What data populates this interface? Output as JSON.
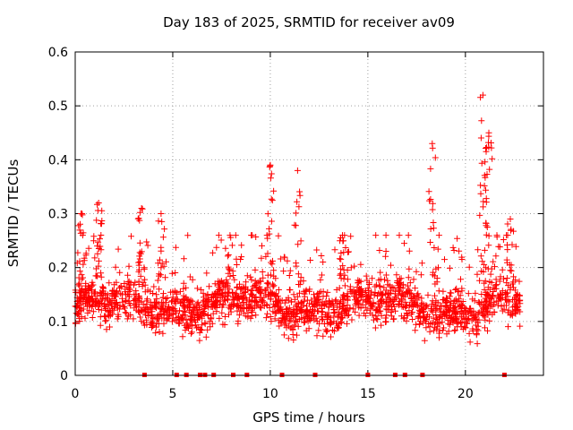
{
  "chart_data": {
    "type": "scatter",
    "title": "Day 183 of 2025, SRMTID for receiver av09",
    "xlabel": "GPS time / hours",
    "ylabel": "SRMTID / TECUs",
    "xlim": [
      0,
      24
    ],
    "ylim": [
      0,
      0.6
    ],
    "xticks": [
      0,
      5,
      10,
      15,
      20
    ],
    "xtick_labels": [
      "0",
      "5",
      "10",
      "15",
      "20"
    ],
    "yticks": [
      0,
      0.1,
      0.2,
      0.3,
      0.4,
      0.5,
      0.6
    ],
    "ytick_labels": [
      "0",
      "0.1",
      "0.2",
      "0.3",
      "0.4",
      "0.5",
      "0.6"
    ],
    "grid": true,
    "marker": "+",
    "color": "#ff0000",
    "x_range": [
      0,
      22.8
    ],
    "typical_y_range": [
      0.05,
      0.22
    ],
    "main_cluster": {
      "y_center": 0.13,
      "y_spread": 0.05
    },
    "spikes": [
      {
        "x": 0.3,
        "y": 0.3
      },
      {
        "x": 1.2,
        "y": 0.32
      },
      {
        "x": 3.4,
        "y": 0.31
      },
      {
        "x": 4.4,
        "y": 0.3
      },
      {
        "x": 10.0,
        "y": 0.39
      },
      {
        "x": 11.4,
        "y": 0.38
      },
      {
        "x": 13.7,
        "y": 0.26
      },
      {
        "x": 18.3,
        "y": 0.43
      },
      {
        "x": 20.9,
        "y": 0.52
      },
      {
        "x": 21.2,
        "y": 0.45
      },
      {
        "x": 22.3,
        "y": 0.29
      }
    ],
    "zero_markers_x": [
      3.55,
      5.2,
      5.7,
      6.4,
      6.65,
      7.1,
      8.1,
      8.8,
      10.6,
      12.3,
      15.0,
      16.4,
      16.9,
      17.8,
      22.0
    ]
  }
}
